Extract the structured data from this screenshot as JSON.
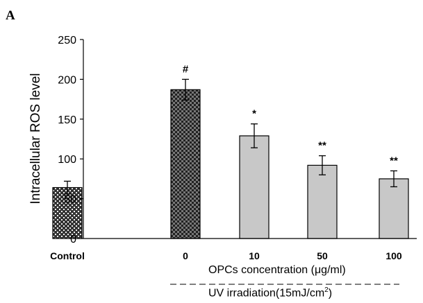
{
  "panel_label": "A",
  "chart_data": {
    "type": "bar",
    "ylabel": "Intracellular ROS level",
    "xlabel": "OPCs concentration (μg/ml)",
    "group_label": "UV irradiation(15mJ/cm²)",
    "group_label_parts": {
      "prefix": "UV irradiation(15mJ/cm",
      "sup": "2",
      "suffix": ")"
    },
    "ylim": [
      0,
      250
    ],
    "yticks": [
      0,
      50,
      100,
      150,
      200,
      250
    ],
    "categories": [
      "Control",
      "0",
      "10",
      "50",
      "100"
    ],
    "values": [
      64,
      187,
      129,
      92,
      75
    ],
    "errors": [
      8,
      13,
      15,
      12,
      10
    ],
    "significance": [
      "",
      "#",
      "*",
      "**",
      "**"
    ],
    "bar_styles": [
      "checker-light",
      "checker-dark",
      "gray",
      "gray",
      "gray"
    ],
    "colors": {
      "gray_fill": "#c8c8c8",
      "checker_dark": "#3a3a3a",
      "checker_light_bg": "#555555",
      "axis": "#000000"
    }
  }
}
